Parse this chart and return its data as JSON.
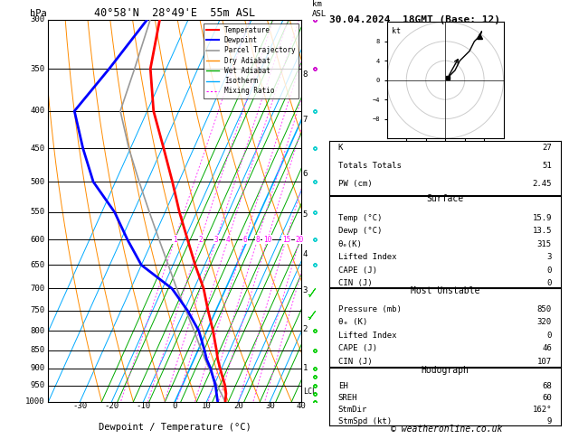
{
  "title_left": "40°58'N  28°49'E  55m ASL",
  "title_right": "30.04.2024  18GMT (Base: 12)",
  "xlabel": "Dewpoint / Temperature (°C)",
  "pressure_levels": [
    300,
    350,
    400,
    450,
    500,
    550,
    600,
    650,
    700,
    750,
    800,
    850,
    900,
    950,
    1000
  ],
  "km_asl_pressures": {
    "1": 900,
    "2": 795,
    "3": 705,
    "4": 628,
    "5": 554,
    "6": 487,
    "7": 411,
    "8": 357
  },
  "bg_color": "#ffffff",
  "sounding_temp": {
    "pressures": [
      1000,
      975,
      950,
      925,
      900,
      875,
      850,
      800,
      750,
      700,
      650,
      600,
      550,
      500,
      450,
      400,
      350,
      300
    ],
    "temps": [
      15.9,
      15.0,
      13.5,
      11.5,
      9.5,
      7.5,
      5.8,
      2.0,
      -2.5,
      -7.0,
      -13.0,
      -19.0,
      -25.5,
      -32.0,
      -39.5,
      -48.0,
      -55.0,
      -59.0
    ],
    "color": "#ff0000",
    "linewidth": 2.0
  },
  "sounding_dewp": {
    "pressures": [
      1000,
      975,
      950,
      925,
      900,
      875,
      850,
      800,
      750,
      700,
      650,
      600,
      550,
      500,
      450,
      400,
      350,
      300
    ],
    "temps": [
      13.5,
      12.0,
      10.5,
      8.5,
      6.5,
      4.0,
      2.0,
      -2.5,
      -9.0,
      -17.0,
      -30.0,
      -38.0,
      -46.0,
      -57.0,
      -65.0,
      -73.0,
      -68.0,
      -63.0
    ],
    "color": "#0000ff",
    "linewidth": 2.0
  },
  "parcel_trajectory": {
    "pressures": [
      1000,
      975,
      950,
      925,
      900,
      875,
      850,
      800,
      750,
      700,
      650,
      600,
      550,
      500,
      450,
      400,
      350,
      300
    ],
    "temps": [
      15.9,
      13.5,
      11.0,
      8.5,
      6.0,
      3.5,
      1.0,
      -4.0,
      -9.5,
      -15.5,
      -21.5,
      -28.0,
      -35.0,
      -42.5,
      -50.5,
      -58.5,
      -60.0,
      -62.0
    ],
    "color": "#999999",
    "linewidth": 1.2
  },
  "lcl_pressure": 968,
  "footnote": "© weatheronline.co.uk",
  "stats": {
    "K": 27,
    "TT": 51,
    "PW": 2.45,
    "surf_temp": 15.9,
    "surf_dewp": 13.5,
    "surf_theta_e": 315,
    "surf_li": 3,
    "surf_cape": 0,
    "surf_cin": 0,
    "mu_pressure": 850,
    "mu_theta_e": 320,
    "mu_li": 0,
    "mu_cape": 46,
    "mu_cin": 107,
    "EH": 68,
    "SREH": 60,
    "StmDir": 162,
    "StmSpd": 9
  },
  "wind_barbs": {
    "pressures": [
      1000,
      975,
      950,
      925,
      900,
      850,
      800,
      750,
      700,
      650,
      600,
      550,
      500,
      450,
      400,
      350,
      300
    ],
    "u": [
      2,
      3,
      4,
      5,
      5,
      7,
      9,
      10,
      11,
      9,
      7,
      6,
      5,
      4,
      6,
      9,
      12
    ],
    "v": [
      2,
      3,
      4,
      6,
      8,
      10,
      12,
      14,
      16,
      13,
      10,
      7,
      5,
      3,
      5,
      8,
      10
    ],
    "colors_by_pressure": {
      "below_700": "#00cc00",
      "700_to_400": "#00cccc",
      "above_400": "#cc00cc"
    }
  },
  "colors": {
    "dry_adiabat": "#ff8c00",
    "wet_adiabat": "#00aa00",
    "isotherm": "#00aaff",
    "mixing_ratio": "#ff44ff",
    "temperature": "#ff0000",
    "dewpoint": "#0000ff",
    "parcel": "#999999",
    "background": "#ffffff",
    "grid": "#000000"
  },
  "P_min": 300,
  "P_max": 1000,
  "T_min": -40,
  "T_max": 40,
  "skew_factor": 45
}
